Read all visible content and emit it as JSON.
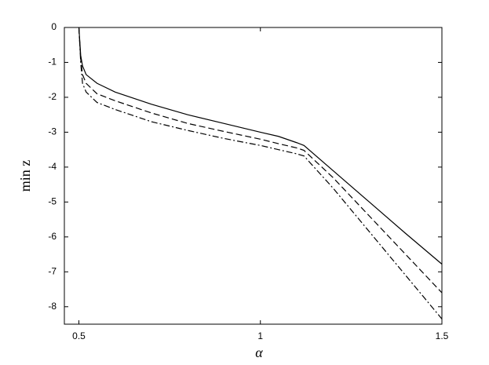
{
  "chart_data": {
    "type": "line",
    "xlabel": "α",
    "ylabel": "min z",
    "x": [
      0.5,
      0.505,
      0.51,
      0.52,
      0.55,
      0.6,
      0.7,
      0.8,
      0.9,
      1.0,
      1.05,
      1.1,
      1.12,
      1.2,
      1.3,
      1.4,
      1.5
    ],
    "series": [
      {
        "color": "#000000",
        "dash": "solid",
        "values": [
          0,
          -0.8,
          -1.1,
          -1.35,
          -1.6,
          -1.85,
          -2.2,
          -2.5,
          -2.75,
          -3.0,
          -3.12,
          -3.3,
          -3.38,
          -4.1,
          -5.0,
          -5.9,
          -6.78
        ]
      },
      {
        "color": "#000000",
        "dash": "dashed",
        "values": [
          0,
          -0.9,
          -1.35,
          -1.6,
          -1.9,
          -2.1,
          -2.45,
          -2.75,
          -2.98,
          -3.2,
          -3.33,
          -3.45,
          -3.52,
          -4.3,
          -5.4,
          -6.5,
          -7.6
        ]
      },
      {
        "color": "#000000",
        "dash": "dashdot",
        "values": [
          0,
          -1.0,
          -1.6,
          -1.85,
          -2.15,
          -2.35,
          -2.7,
          -2.95,
          -3.18,
          -3.38,
          -3.5,
          -3.62,
          -3.68,
          -4.6,
          -5.85,
          -7.1,
          -8.35
        ]
      }
    ],
    "xlim": [
      0.46,
      1.5
    ],
    "xticks": [
      0.5,
      1,
      1.5
    ],
    "ylim": [
      -8.5,
      0
    ],
    "yticks": [
      0,
      -1,
      -2,
      -3,
      -4,
      -5,
      -6,
      -7,
      -8
    ],
    "grid": false
  }
}
